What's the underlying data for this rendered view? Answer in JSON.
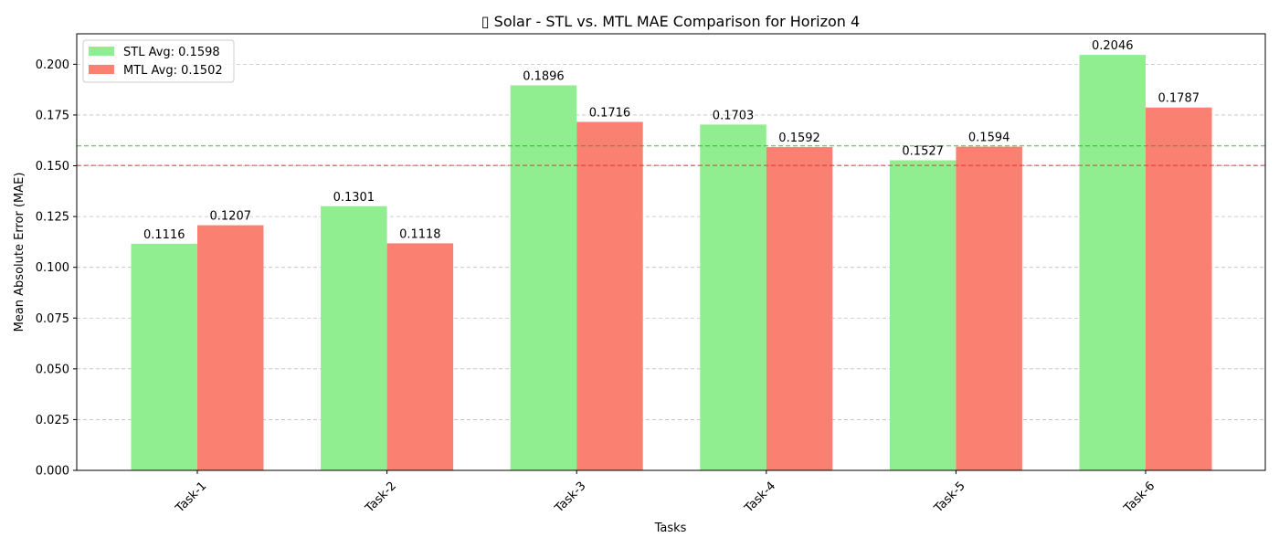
{
  "chart_data": {
    "type": "bar",
    "title": "▯ Solar - STL vs. MTL MAE Comparison for Horizon 4",
    "xlabel": "Tasks",
    "ylabel": "Mean Absolute Error (MAE)",
    "categories": [
      "Task-1",
      "Task-2",
      "Task-3",
      "Task-4",
      "Task-5",
      "Task-6"
    ],
    "series": [
      {
        "name": "STL",
        "color": "#90ee90",
        "values": [
          0.1116,
          0.1301,
          0.1896,
          0.1703,
          0.1527,
          0.2046
        ]
      },
      {
        "name": "MTL",
        "color": "#fa8072",
        "values": [
          0.1207,
          0.1118,
          0.1716,
          0.1592,
          0.1594,
          0.1787
        ]
      }
    ],
    "averages": [
      {
        "label": "STL Avg: 0.1598",
        "value": 0.1598,
        "color": "#2ca02c"
      },
      {
        "label": "MTL Avg: 0.1502",
        "value": 0.1502,
        "color": "#d62728"
      }
    ],
    "ylim": [
      0,
      0.215
    ],
    "yticks": [
      "0.000",
      "0.025",
      "0.050",
      "0.075",
      "0.100",
      "0.125",
      "0.150",
      "0.175",
      "0.200"
    ],
    "grid": "y-dashed",
    "legend": "top-left"
  }
}
